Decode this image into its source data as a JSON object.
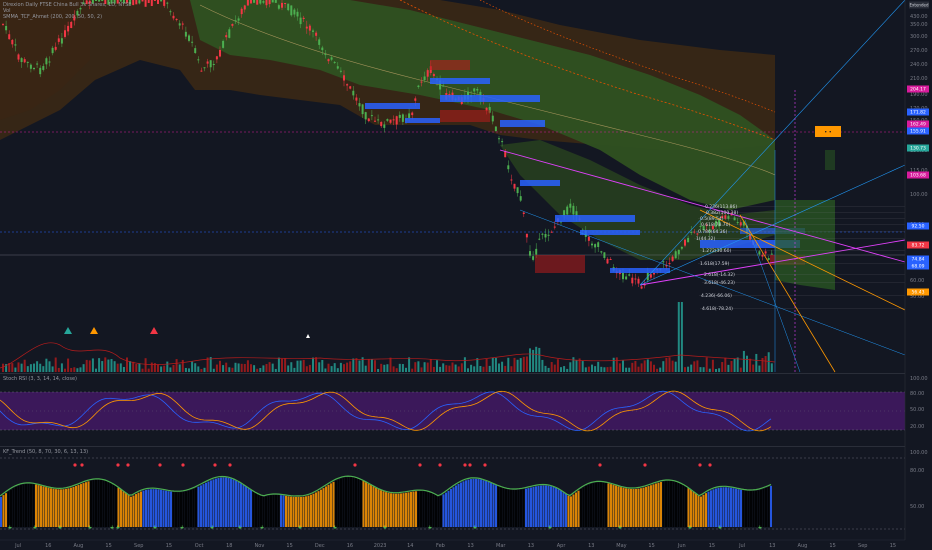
{
  "legend": {
    "title": "Direxion Daily FTSE China Bull 3x Shares, 1D, NYSE",
    "line2": "Vol",
    "line3": "SMMA_TCF_Ahmet (200, 200, 50, 50, 2)",
    "stoch_label": "Stoch RSI (3, 3, 14, 14, close)",
    "kf_label": "KF_Trend (50, 8, 70, 30, 6, 13, 13)"
  },
  "price_panel": {
    "pin_label": "Extended"
  },
  "chart_data": {
    "type": "candlestick",
    "x_ticks": [
      "Jul",
      "16",
      "Aug",
      "15",
      "Sep",
      "15",
      "Oct",
      "18",
      "Nov",
      "15",
      "Dec",
      "16",
      "2023",
      "14",
      "Feb",
      "13",
      "Mar",
      "13",
      "Apr",
      "13",
      "May",
      "15",
      "Jun",
      "15",
      "Jul",
      "13",
      "Aug",
      "15",
      "Sep",
      "15"
    ],
    "y_ticks": [
      "430.00",
      "350.00",
      "300.00",
      "270.00",
      "240.00",
      "210.00",
      "190.00",
      "170.00",
      "150.00",
      "130.00",
      "115.00",
      "100.00",
      "90.00",
      "80.00",
      "70.00",
      "60.00",
      "50.00"
    ],
    "fib_labels": [
      "0.236(113.86)",
      "0.382(100.38)",
      "0.5(89.54)",
      "0.618(78.70)",
      "0.786(64.36)",
      "1(44.32)",
      "1.272(30.60)",
      "1.618(17.59)",
      "2.618(-14.32)",
      "3.618(-46.23)",
      "4.236(-66.06)",
      "4.618(-78.24)"
    ],
    "stoch_ticks": [
      "100.00",
      "80.00",
      "50.00",
      "20.00"
    ],
    "kf_ticks": [
      "100.00",
      "80.00",
      "50.00"
    ],
    "price_tags": [
      {
        "text": "204.17",
        "color": "#d81b9c"
      },
      {
        "text": "171.82",
        "color": "#2962ff"
      },
      {
        "text": "162.49",
        "color": "#d81b9c"
      },
      {
        "text": "155.91",
        "color": "#2962ff"
      },
      {
        "text": "130.73",
        "color": "#26a69a"
      },
      {
        "text": "103.68",
        "color": "#d81b9c"
      },
      {
        "text": "92.50",
        "color": "#2962ff"
      },
      {
        "text": "83.72",
        "color": "#f23645"
      },
      {
        "text": "74.84",
        "color": "#2962ff"
      },
      {
        "text": "68.09",
        "color": "#2962ff"
      },
      {
        "text": "56.43",
        "color": "#ff9800"
      }
    ],
    "grid": false,
    "legend_position": "top-left"
  }
}
